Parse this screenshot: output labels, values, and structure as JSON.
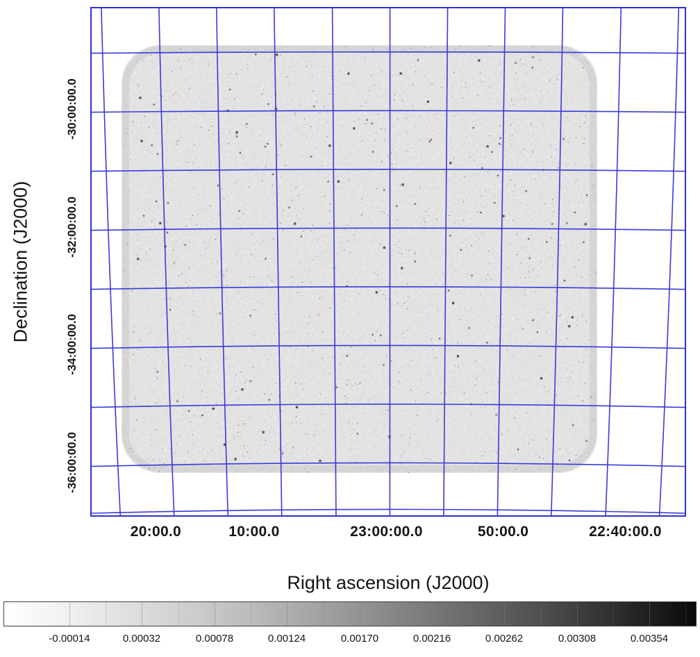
{
  "figure": {
    "x_axis_title": "Right ascension (J2000)",
    "y_axis_title": "Declination (J2000)"
  },
  "chart_data": {
    "type": "heatmap",
    "title": "",
    "xlabel": "Right ascension (J2000)",
    "ylabel": "Declination (J2000)",
    "grid": {
      "on": true,
      "color": "#3a3ad8",
      "meridian_pos": [
        0.022,
        0.118,
        0.214,
        0.31,
        0.407,
        0.503,
        0.599,
        0.695,
        0.791,
        0.888,
        0.984
      ],
      "parallel_pos": [
        0.085,
        0.2005,
        0.316,
        0.4315,
        0.547,
        0.6625,
        0.778,
        0.8935,
        0.985
      ]
    },
    "x_ticks": [
      {
        "label": "20:00.0",
        "pos": 0.11
      },
      {
        "label": "10:00.0",
        "pos": 0.275
      },
      {
        "label": "23:00:00.0",
        "pos": 0.497
      },
      {
        "label": "50:00.0",
        "pos": 0.693
      },
      {
        "label": "22:40:00.0",
        "pos": 0.898
      }
    ],
    "y_ticks": [
      {
        "label": "-30:00:00.0",
        "pos": 0.2005
      },
      {
        "label": "-32:00:00.0",
        "pos": 0.4315
      },
      {
        "label": "-34:00:00.0",
        "pos": 0.6625
      },
      {
        "label": "-36:00:00.0",
        "pos": 0.8935
      }
    ],
    "image_region": {
      "x0": 0.052,
      "y0": 0.075,
      "x1": 0.851,
      "y1": 0.915,
      "base_color": "#e3e3e3",
      "content": "grayscale radio-survey mosaic with fine noise and dark point sources"
    },
    "colorbar": {
      "position": "bottom",
      "gradient": [
        "#ffffff",
        "#000000"
      ],
      "labels": [
        "-0.00014",
        "0.00032",
        "0.00078",
        "0.00124",
        "0.00170",
        "0.00216",
        "0.00262",
        "0.00308",
        "0.00354"
      ],
      "values": [
        -0.00014,
        0.00032,
        0.00078,
        0.00124,
        0.0017,
        0.00216,
        0.00262,
        0.00308,
        0.00354
      ]
    }
  }
}
